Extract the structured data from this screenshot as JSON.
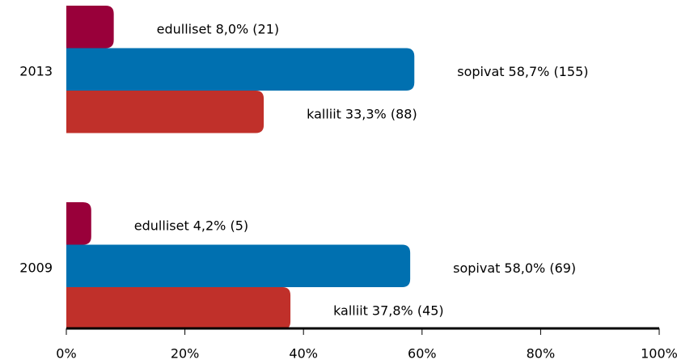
{
  "chart_data": {
    "type": "barh",
    "categories": [
      "2013",
      "2009"
    ],
    "series": [
      {
        "name": "edulliset",
        "color": "#99003a",
        "values": [
          8.0,
          4.2
        ],
        "value_labels": [
          "8,0% (21)",
          "4,2% (5)"
        ]
      },
      {
        "name": "sopivat",
        "color": "#0070b0",
        "values": [
          58.7,
          58.0
        ],
        "value_labels": [
          "58,7% (155)",
          "58,0% (69)"
        ]
      },
      {
        "name": "kalliit",
        "color": "#c0302a",
        "values": [
          33.3,
          37.8
        ],
        "value_labels": [
          "33,3% (88)",
          "37,8% (45)"
        ]
      }
    ],
    "xlim": [
      0,
      100
    ],
    "xticks": [
      {
        "value": 0,
        "label": "0%"
      },
      {
        "value": 20,
        "label": "20%"
      },
      {
        "value": 40,
        "label": "40%"
      },
      {
        "value": 60,
        "label": "60%"
      },
      {
        "value": 80,
        "label": "80%"
      },
      {
        "value": 100,
        "label": "100%"
      }
    ]
  }
}
